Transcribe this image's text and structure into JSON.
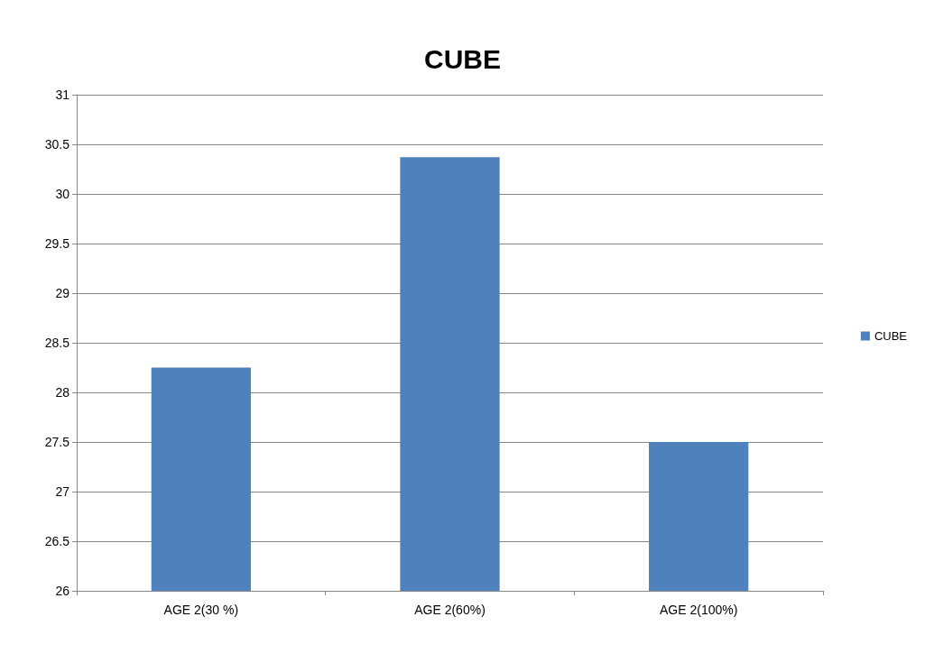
{
  "chart_data": {
    "type": "bar",
    "title": "CUBE",
    "categories": [
      "AGE 2(30 %)",
      "AGE 2(60%)",
      "AGE 2(100%)"
    ],
    "series": [
      {
        "name": "CUBE",
        "color": "#4f81bd",
        "values": [
          28.25,
          30.37,
          27.5
        ]
      }
    ],
    "ylim": [
      26,
      31
    ],
    "yticks": [
      26,
      26.5,
      27,
      27.5,
      28,
      28.5,
      29,
      29.5,
      30,
      30.5,
      31
    ],
    "grid": "y",
    "legend": "right"
  }
}
